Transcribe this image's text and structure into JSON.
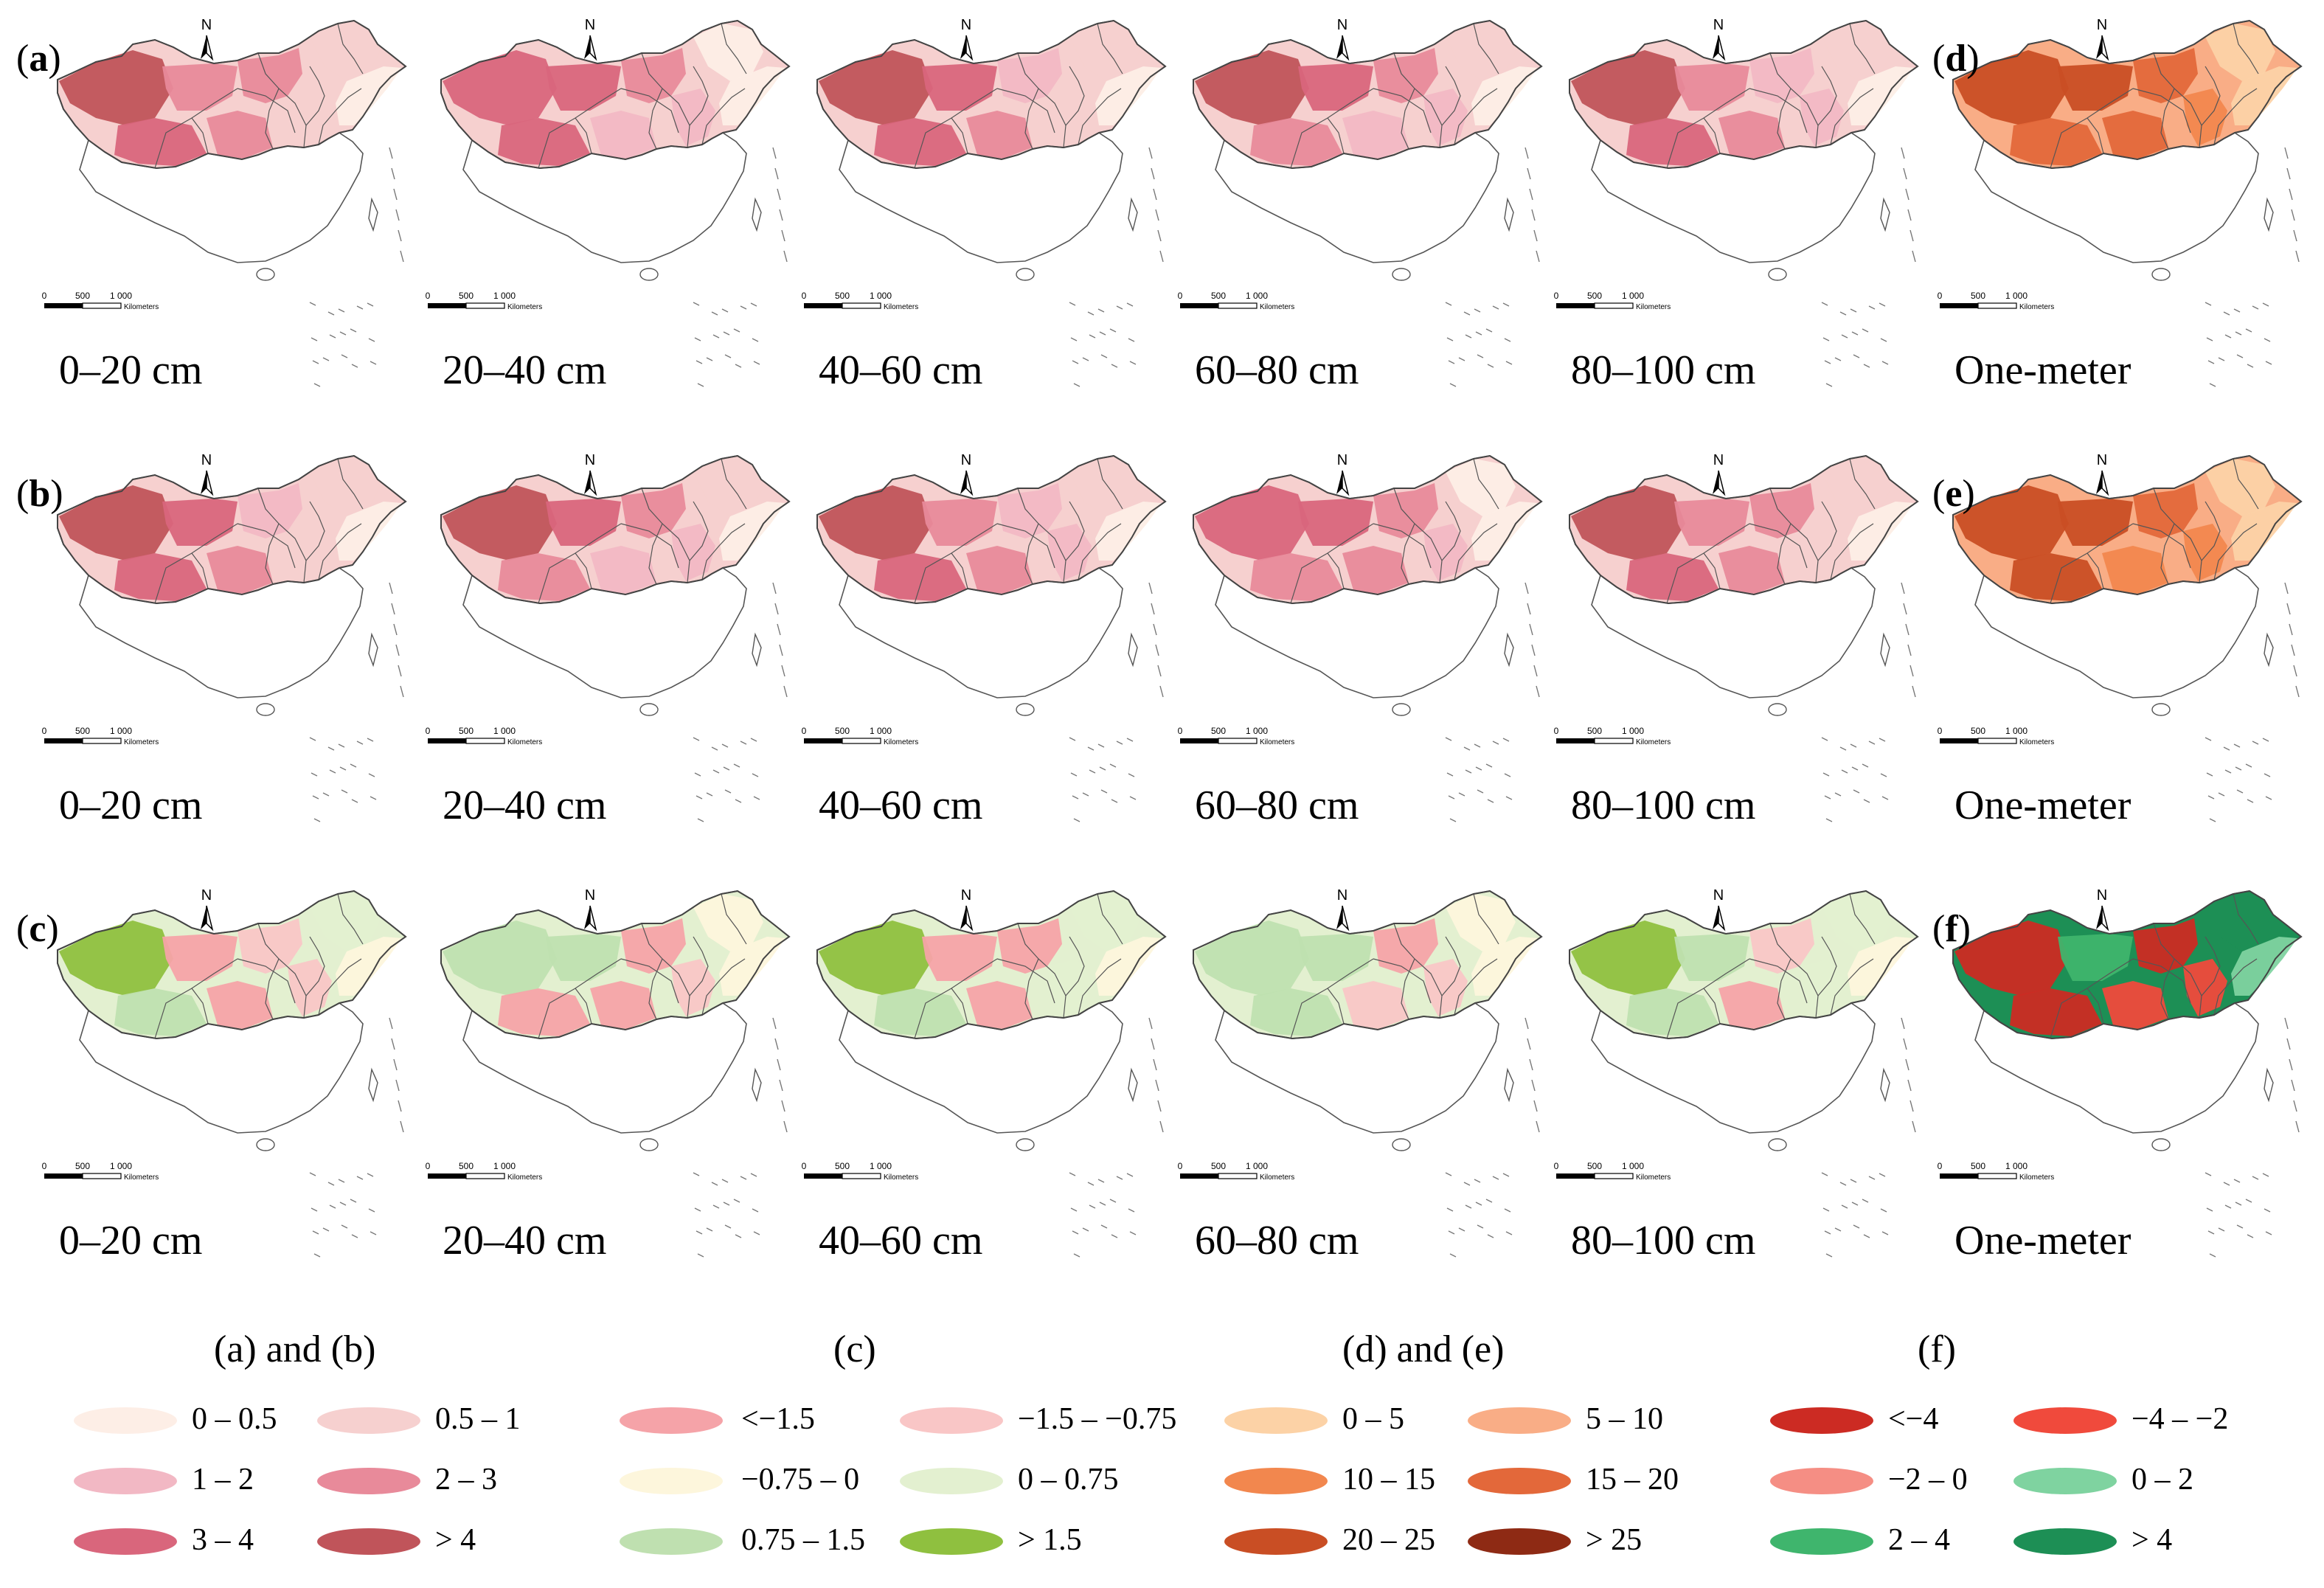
{
  "rows": [
    {
      "panel_label": "(a)",
      "panel_letter": "a",
      "palette": "ab",
      "maps": [
        {
          "depth": "0–20 cm"
        },
        {
          "depth": "20–40 cm"
        },
        {
          "depth": "40–60 cm"
        },
        {
          "depth": "60–80 cm"
        },
        {
          "depth": "80–100 cm"
        },
        {
          "depth": "One-meter",
          "panel_letter": "d",
          "palette": "de"
        }
      ]
    },
    {
      "panel_label": "(b)",
      "panel_letter": "b",
      "palette": "ab",
      "maps": [
        {
          "depth": "0–20 cm"
        },
        {
          "depth": "20–40 cm"
        },
        {
          "depth": "40–60 cm"
        },
        {
          "depth": "60–80 cm"
        },
        {
          "depth": "80–100 cm"
        },
        {
          "depth": "One-meter",
          "panel_letter": "e",
          "palette": "de"
        }
      ]
    },
    {
      "panel_label": "(c)",
      "panel_letter": "c",
      "palette": "c",
      "maps": [
        {
          "depth": "0–20 cm"
        },
        {
          "depth": "20–40 cm"
        },
        {
          "depth": "40–60 cm"
        },
        {
          "depth": "60–80 cm"
        },
        {
          "depth": "80–100 cm"
        },
        {
          "depth": "One-meter",
          "panel_letter": "f",
          "palette": "f"
        }
      ]
    }
  ],
  "scale_bar": {
    "ticks": [
      "0",
      "500",
      "1 000"
    ],
    "unit": "Kilometers"
  },
  "north_arrow": {
    "label": "N",
    "icon": "north-arrow-icon"
  },
  "legends": [
    {
      "title": "(a) and (b)",
      "items": [
        {
          "label": "0 – 0.5",
          "color": "#fdeee6"
        },
        {
          "label": "0.5 – 1",
          "color": "#f6d0cf"
        },
        {
          "label": "1 – 2",
          "color": "#f2b8c4"
        },
        {
          "label": "2 – 3",
          "color": "#e88a9a"
        },
        {
          "label": "3 – 4",
          "color": "#d9667c"
        },
        {
          "label": "> 4",
          "color": "#c0545a"
        }
      ]
    },
    {
      "title": "(c)",
      "items": [
        {
          "label": "<−1.5",
          "color": "#f5a3a8"
        },
        {
          "label": "−1.5 – −0.75",
          "color": "#f9c6c6"
        },
        {
          "label": "−0.75 – 0",
          "color": "#fdf6dc"
        },
        {
          "label": "0 – 0.75",
          "color": "#e3f0d0"
        },
        {
          "label": "0.75 – 1.5",
          "color": "#bfe0b0"
        },
        {
          "label": "> 1.5",
          "color": "#8fc03f"
        }
      ]
    },
    {
      "title": "(d) and (e)",
      "items": [
        {
          "label": "0 – 5",
          "color": "#fcd2a6"
        },
        {
          "label": "5 – 10",
          "color": "#f9ad86"
        },
        {
          "label": "10 – 15",
          "color": "#f2874e"
        },
        {
          "label": "15 – 20",
          "color": "#e3683a"
        },
        {
          "label": "20 – 25",
          "color": "#c94e24"
        },
        {
          "label": "> 25",
          "color": "#8e2a14"
        }
      ]
    },
    {
      "title": "(f)",
      "items": [
        {
          "label": "<−4",
          "color": "#cc2b23"
        },
        {
          "label": "−4 – −2",
          "color": "#f04a3c"
        },
        {
          "label": "−2 – 0",
          "color": "#f58e84"
        },
        {
          "label": "0 – 2",
          "color": "#7fd3a0"
        },
        {
          "label": "2 – 4",
          "color": "#3fb56d"
        },
        {
          "label": "> 4",
          "color": "#1d8f55"
        }
      ]
    }
  ]
}
